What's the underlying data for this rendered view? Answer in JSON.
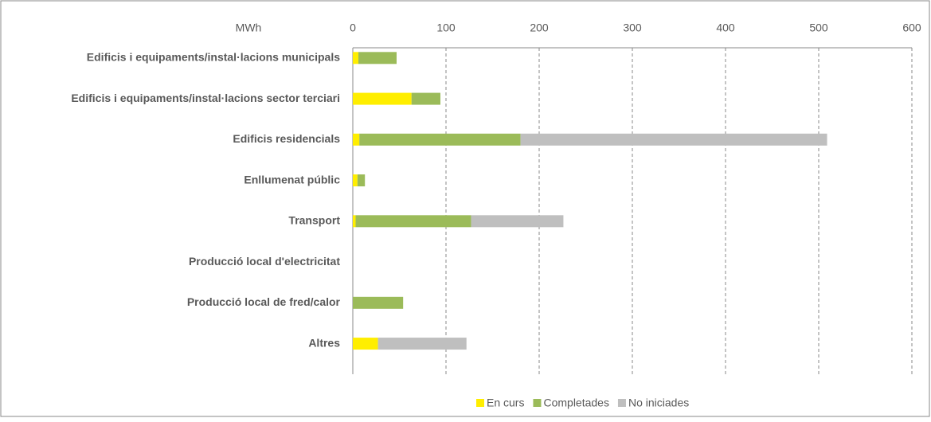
{
  "chart_data": {
    "type": "stacked_bar_horizontal",
    "x_label": "MWh",
    "categories": [
      "Edificis i equipaments/instal·lacions municipals",
      "Edificis i equipaments/instal·lacions sector terciari",
      "Edificis residencials",
      "Enllumenat públic",
      "Transport",
      "Producció local d'electricitat",
      "Producció local de fred/calor",
      "Altres"
    ],
    "series": [
      {
        "name": "En curs",
        "color": "#ffee00",
        "values": [
          6,
          63,
          7,
          5,
          3,
          0,
          0,
          27
        ]
      },
      {
        "name": "Completades",
        "color": "#9bbb59",
        "values": [
          41,
          31,
          173,
          8,
          124,
          0,
          54,
          0
        ]
      },
      {
        "name": "No iniciades",
        "color": "#bfbfbf",
        "values": [
          0,
          0,
          329,
          0,
          99,
          0,
          0,
          95
        ]
      }
    ],
    "xlim": [
      0,
      600
    ],
    "xticks": [
      0,
      100,
      200,
      300,
      400,
      500,
      600
    ],
    "grid": true,
    "legend": "bottom"
  }
}
